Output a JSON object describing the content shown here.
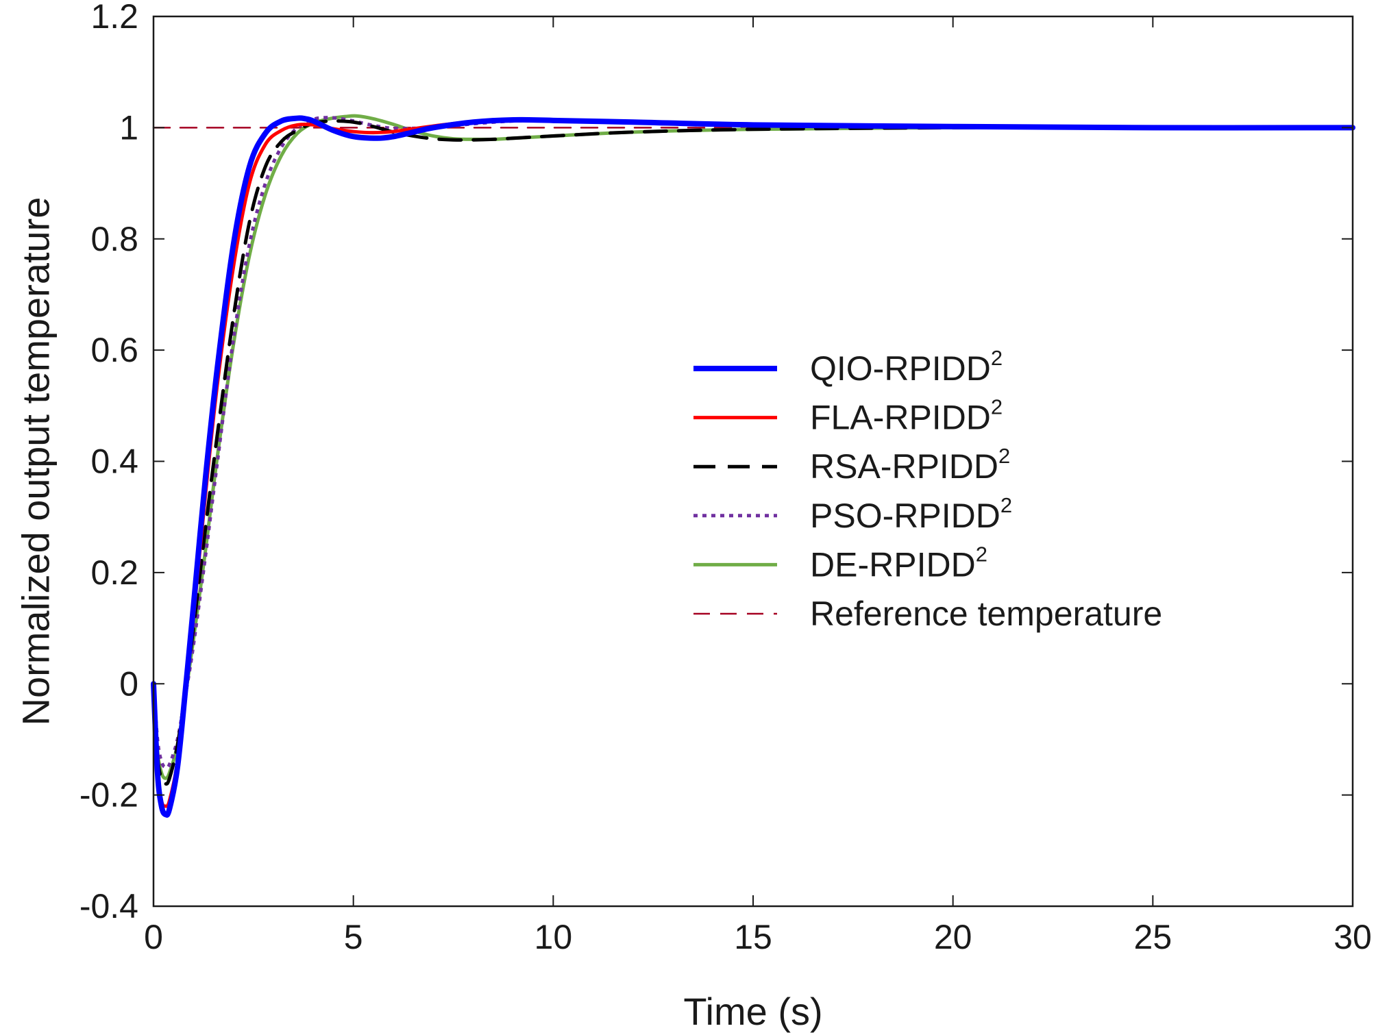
{
  "chart_data": {
    "type": "line",
    "title": "",
    "xlabel": "Time (s)",
    "ylabel": "Normalized output temperature",
    "xlim": [
      0,
      30
    ],
    "ylim": [
      -0.4,
      1.2
    ],
    "x_ticks": [
      0,
      5,
      10,
      15,
      20,
      25,
      30
    ],
    "x_tick_labels": [
      "0",
      "5",
      "10",
      "15",
      "20",
      "25",
      "30"
    ],
    "y_ticks": [
      -0.4,
      -0.2,
      0,
      0.2,
      0.4,
      0.6,
      0.8,
      1,
      1.2
    ],
    "y_tick_labels": [
      "-0.4",
      "-0.2",
      "0",
      "0.2",
      "0.4",
      "0.6",
      "0.8",
      "1",
      "1.2"
    ],
    "grid": false,
    "legend_position": "center-right",
    "series": [
      {
        "name": "QIO-RPIDD",
        "superscript": "2",
        "color": "#0000ff",
        "style": "solid",
        "x": [
          0,
          0.1,
          0.2,
          0.3,
          0.4,
          0.6,
          0.8,
          1.0,
          1.3,
          1.6,
          2.0,
          2.4,
          2.8,
          3.2,
          3.6,
          3.8,
          4.0,
          4.5,
          5.0,
          5.6,
          6.0,
          6.5,
          7.0,
          8.0,
          9.0,
          10.0,
          12.0,
          15.0,
          20.0,
          25.0,
          30.0
        ],
        "values": [
          0,
          -0.16,
          -0.22,
          -0.235,
          -0.225,
          -0.15,
          -0.01,
          0.14,
          0.37,
          0.57,
          0.79,
          0.93,
          0.99,
          1.012,
          1.017,
          1.016,
          1.012,
          0.995,
          0.984,
          0.981,
          0.984,
          0.992,
          1.0,
          1.01,
          1.014,
          1.013,
          1.01,
          1.005,
          1.002,
          1.0,
          1.0
        ]
      },
      {
        "name": "FLA-RPIDD",
        "superscript": "2",
        "color": "#ff0000",
        "style": "solid",
        "x": [
          0,
          0.1,
          0.2,
          0.3,
          0.4,
          0.6,
          0.8,
          1.0,
          1.3,
          1.6,
          2.0,
          2.4,
          2.8,
          3.2,
          3.6,
          4.0,
          4.5,
          5.0,
          5.5,
          6.0,
          7.0,
          8.0,
          9.0,
          10.0,
          12.0,
          15.0,
          20.0,
          25.0,
          30.0
        ],
        "values": [
          0,
          -0.15,
          -0.21,
          -0.22,
          -0.21,
          -0.14,
          -0.02,
          0.12,
          0.34,
          0.54,
          0.75,
          0.9,
          0.97,
          0.995,
          1.005,
          1.005,
          0.998,
          0.993,
          0.991,
          0.993,
          1.003,
          1.011,
          1.014,
          1.013,
          1.01,
          1.005,
          1.002,
          1.0,
          1.0
        ]
      },
      {
        "name": "RSA-RPIDD",
        "superscript": "2",
        "color": "#000000",
        "style": "dash",
        "x": [
          0,
          0.1,
          0.2,
          0.3,
          0.4,
          0.6,
          0.8,
          1.0,
          1.3,
          1.6,
          2.0,
          2.4,
          2.8,
          3.2,
          3.6,
          4.0,
          4.5,
          5.0,
          5.5,
          6.0,
          6.5,
          7.0,
          7.5,
          8.0,
          8.5,
          9.0,
          10.0,
          12.0,
          15.0,
          20.0,
          25.0,
          30.0
        ],
        "values": [
          0,
          -0.13,
          -0.17,
          -0.18,
          -0.17,
          -0.11,
          -0.01,
          0.1,
          0.28,
          0.45,
          0.66,
          0.83,
          0.93,
          0.975,
          0.995,
          1.008,
          1.012,
          1.01,
          1.002,
          0.992,
          0.985,
          0.98,
          0.978,
          0.978,
          0.979,
          0.981,
          0.985,
          0.992,
          0.997,
          1.0,
          1.0,
          1.0
        ]
      },
      {
        "name": "PSO-RPIDD",
        "superscript": "2",
        "color": "#7030a0",
        "style": "dot",
        "x": [
          0,
          0.1,
          0.2,
          0.3,
          0.4,
          0.6,
          0.8,
          1.0,
          1.3,
          1.6,
          2.0,
          2.4,
          2.8,
          3.2,
          3.6,
          4.0,
          4.3,
          4.6,
          5.0,
          5.5,
          6.0,
          7.0,
          8.0,
          9.0,
          10.0,
          12.0,
          15.0,
          20.0,
          25.0,
          30.0
        ],
        "values": [
          0,
          -0.1,
          -0.14,
          -0.15,
          -0.145,
          -0.1,
          -0.02,
          0.07,
          0.23,
          0.4,
          0.62,
          0.79,
          0.9,
          0.965,
          1.0,
          1.015,
          1.018,
          1.017,
          1.012,
          1.004,
          0.999,
          1.0,
          1.007,
          1.012,
          1.013,
          1.01,
          1.005,
          1.002,
          1.0,
          1.0
        ]
      },
      {
        "name": "DE-RPIDD",
        "superscript": "2",
        "color": "#70ad47",
        "style": "solid",
        "x": [
          0,
          0.1,
          0.2,
          0.3,
          0.4,
          0.6,
          0.8,
          1.0,
          1.3,
          1.6,
          2.0,
          2.4,
          2.8,
          3.2,
          3.6,
          4.0,
          4.4,
          4.8,
          5.1,
          5.5,
          6.0,
          6.5,
          7.0,
          7.5,
          8.0,
          8.5,
          9.0,
          10.0,
          12.0,
          15.0,
          20.0,
          25.0,
          30.0
        ],
        "values": [
          0,
          -0.12,
          -0.16,
          -0.17,
          -0.16,
          -0.11,
          -0.02,
          0.08,
          0.24,
          0.41,
          0.61,
          0.77,
          0.88,
          0.95,
          0.99,
          1.008,
          1.016,
          1.02,
          1.021,
          1.016,
          1.006,
          0.994,
          0.985,
          0.98,
          0.979,
          0.979,
          0.981,
          0.985,
          0.992,
          0.997,
          1.0,
          1.0,
          1.0
        ]
      },
      {
        "name": "Reference temperature",
        "superscript": "",
        "color": "#a50021",
        "style": "dash-thin",
        "x": [
          0,
          30
        ],
        "values": [
          1,
          1
        ]
      }
    ]
  }
}
